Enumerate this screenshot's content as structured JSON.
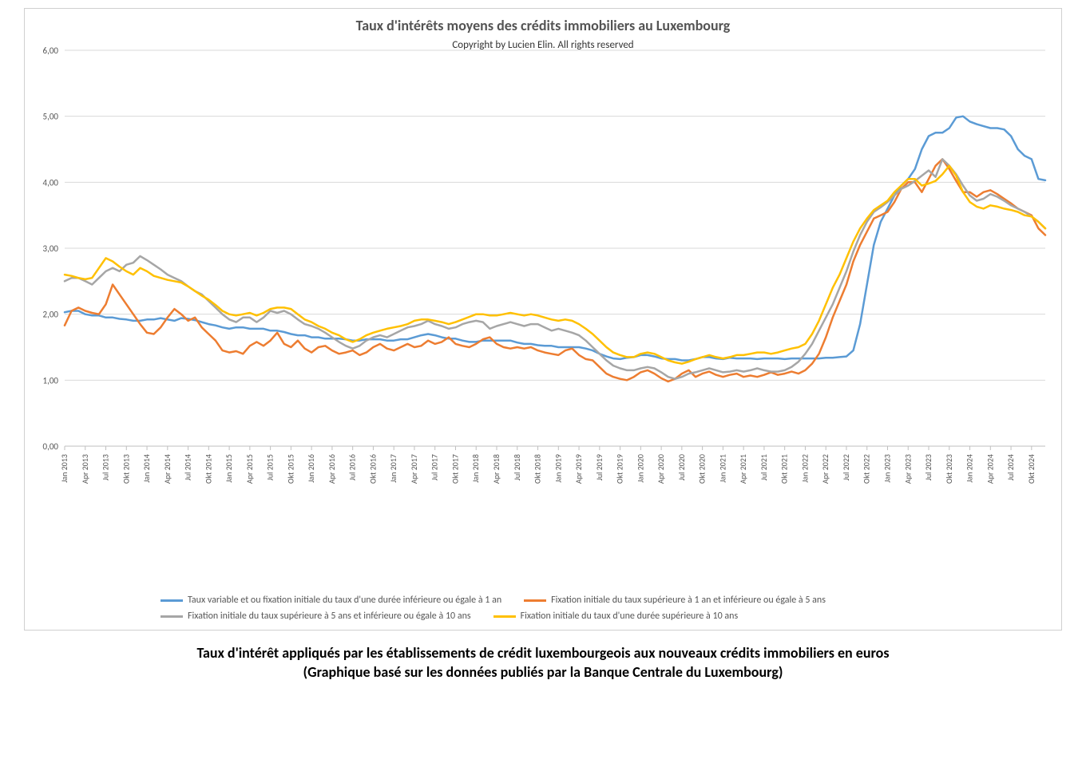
{
  "chart": {
    "type": "line",
    "title": "Taux d'intérêts moyens des crédits immobiliers au Luxembourg",
    "subtitle": "Copyright by Lucien Elin. All rights reserved",
    "title_fontsize": 18,
    "subtitle_fontsize": 13,
    "background_color": "#ffffff",
    "border_color": "#d0d0d0",
    "grid_color": "#d9d9d9",
    "axis_line_color": "#bfbfbf",
    "ylim": [
      0.0,
      6.0
    ],
    "ytick_step": 1.0,
    "ytick_labels": [
      "0,00",
      "1,00",
      "2,00",
      "3,00",
      "4,00",
      "5,00",
      "6,00"
    ],
    "yaxis_fontsize": 11,
    "xaxis_fontsize": 10,
    "line_width": 2.5,
    "x_categories": [
      "Jan 2013",
      "Feb 2013",
      "Mar 2013",
      "Apr 2013",
      "Mai 2013",
      "Jun 2013",
      "Jul 2013",
      "Aug 2013",
      "Sep 2013",
      "Okt 2013",
      "Nov 2013",
      "Dez 2013",
      "Jan 2014",
      "Feb 2014",
      "Mar 2014",
      "Apr 2014",
      "Mai 2014",
      "Jun 2014",
      "Jul 2014",
      "Aug 2014",
      "Sep 2014",
      "Okt 2014",
      "Nov 2014",
      "Dez 2014",
      "Jan 2015",
      "Feb 2015",
      "Mar 2015",
      "Apr 2015",
      "Mai 2015",
      "Jun 2015",
      "Jul 2015",
      "Aug 2015",
      "Sep 2015",
      "Okt 2015",
      "Nov 2015",
      "Dez 2015",
      "Jan 2016",
      "Feb 2016",
      "Mar 2016",
      "Apr 2016",
      "Mai 2016",
      "Jun 2016",
      "Jul 2016",
      "Aug 2016",
      "Sep 2016",
      "Okt 2016",
      "Nov 2016",
      "Dez 2016",
      "Jan 2017",
      "Feb 2017",
      "Mar 2017",
      "Apr 2017",
      "Mai 2017",
      "Jun 2017",
      "Jul 2017",
      "Aug 2017",
      "Sep 2017",
      "Okt 2017",
      "Nov 2017",
      "Dez 2017",
      "Jan 2018",
      "Feb 2018",
      "Mar 2018",
      "Apr 2018",
      "Mai 2018",
      "Jun 2018",
      "Jul 2018",
      "Aug 2018",
      "Sep 2018",
      "Okt 2018",
      "Nov 2018",
      "Dez 2018",
      "Jan 2019",
      "Feb 2019",
      "Mar 2019",
      "Apr 2019",
      "Mai 2019",
      "Jun 2019",
      "Jul 2019",
      "Aug 2019",
      "Sep 2019",
      "Okt 2019",
      "Nov 2019",
      "Dez 2019",
      "Jan 2020",
      "Feb 2020",
      "Mar 2020",
      "Apr 2020",
      "Mai 2020",
      "Jun 2020",
      "Jul 2020",
      "Aug 2020",
      "Sep 2020",
      "Okt 2020",
      "Nov 2020",
      "Dez 2020",
      "Jan 2021",
      "Feb 2021",
      "Mar 2021",
      "Apr 2021",
      "Mai 2021",
      "Jun 2021",
      "Jul 2021",
      "Aug 2021",
      "Sep 2021",
      "Okt 2021",
      "Nov 2021",
      "Dez 2021",
      "Jan 2022",
      "Feb 2022",
      "Mar 2022",
      "Apr 2022",
      "Mai 2022",
      "Jun 2022",
      "Jul 2022",
      "Aug 2022",
      "Sep 2022",
      "Okt 2022",
      "Nov 2022",
      "Dez 2022",
      "Jan 2023",
      "Feb 2023",
      "Mar 2023",
      "Apr 2023",
      "Mai 2023",
      "Jun 2023",
      "Jul 2023",
      "Aug 2023",
      "Sep 2023",
      "Okt 2023",
      "Nov 2023",
      "Dez 2023",
      "Jan 2024",
      "Feb 2024",
      "Mar 2024",
      "Apr 2024",
      "Mai 2024",
      "Jun 2024",
      "Jul 2024",
      "Aug 2024",
      "Sep 2024",
      "Okt 2024",
      "Nov 2024",
      "Dez 2024"
    ],
    "x_tick_step": 3,
    "x_tick_rotation": -90,
    "series": [
      {
        "id": "variable_1y",
        "label": "Taux variable et ou fixation initiale du taux d'une durée inférieure ou égale à 1 an",
        "color": "#5b9bd5",
        "values": [
          2.03,
          2.05,
          2.05,
          2.0,
          1.98,
          1.98,
          1.95,
          1.95,
          1.93,
          1.92,
          1.9,
          1.9,
          1.92,
          1.92,
          1.94,
          1.92,
          1.9,
          1.94,
          1.93,
          1.91,
          1.88,
          1.85,
          1.83,
          1.8,
          1.78,
          1.8,
          1.8,
          1.78,
          1.78,
          1.78,
          1.75,
          1.75,
          1.73,
          1.7,
          1.68,
          1.68,
          1.65,
          1.65,
          1.63,
          1.63,
          1.63,
          1.62,
          1.6,
          1.6,
          1.62,
          1.62,
          1.62,
          1.6,
          1.6,
          1.62,
          1.62,
          1.65,
          1.68,
          1.7,
          1.68,
          1.65,
          1.63,
          1.63,
          1.6,
          1.58,
          1.58,
          1.6,
          1.6,
          1.6,
          1.6,
          1.6,
          1.57,
          1.55,
          1.55,
          1.53,
          1.52,
          1.52,
          1.5,
          1.5,
          1.5,
          1.5,
          1.48,
          1.45,
          1.4,
          1.36,
          1.33,
          1.32,
          1.34,
          1.35,
          1.38,
          1.38,
          1.36,
          1.33,
          1.32,
          1.32,
          1.3,
          1.3,
          1.32,
          1.35,
          1.35,
          1.33,
          1.32,
          1.34,
          1.33,
          1.33,
          1.33,
          1.32,
          1.33,
          1.33,
          1.33,
          1.32,
          1.33,
          1.33,
          1.33,
          1.33,
          1.33,
          1.34,
          1.34,
          1.35,
          1.36,
          1.45,
          1.85,
          2.45,
          3.05,
          3.4,
          3.6,
          3.8,
          3.95,
          4.05,
          4.2,
          4.5,
          4.7,
          4.75,
          4.75,
          4.82,
          4.98,
          5.0,
          4.92,
          4.88,
          4.85,
          4.82,
          4.82,
          4.8,
          4.7,
          4.5,
          4.4,
          4.35,
          4.05,
          4.03
        ]
      },
      {
        "id": "fix_1_5",
        "label": "Fixation initiale du taux supérieure à 1 an et inférieure ou égale à 5 ans",
        "color": "#ed7d31",
        "values": [
          1.83,
          2.05,
          2.1,
          2.05,
          2.02,
          2.0,
          2.15,
          2.45,
          2.3,
          2.15,
          2.0,
          1.85,
          1.72,
          1.7,
          1.8,
          1.95,
          2.08,
          2.0,
          1.9,
          1.95,
          1.8,
          1.7,
          1.6,
          1.45,
          1.42,
          1.44,
          1.4,
          1.52,
          1.58,
          1.52,
          1.6,
          1.72,
          1.55,
          1.5,
          1.6,
          1.48,
          1.42,
          1.5,
          1.52,
          1.45,
          1.4,
          1.42,
          1.45,
          1.38,
          1.42,
          1.5,
          1.55,
          1.48,
          1.45,
          1.5,
          1.55,
          1.5,
          1.52,
          1.6,
          1.55,
          1.58,
          1.65,
          1.55,
          1.52,
          1.5,
          1.55,
          1.62,
          1.65,
          1.55,
          1.5,
          1.48,
          1.5,
          1.48,
          1.5,
          1.45,
          1.42,
          1.4,
          1.38,
          1.45,
          1.48,
          1.38,
          1.32,
          1.3,
          1.2,
          1.1,
          1.05,
          1.02,
          1.0,
          1.05,
          1.12,
          1.15,
          1.1,
          1.03,
          0.98,
          1.02,
          1.1,
          1.15,
          1.05,
          1.1,
          1.13,
          1.08,
          1.05,
          1.08,
          1.1,
          1.05,
          1.07,
          1.05,
          1.08,
          1.12,
          1.08,
          1.1,
          1.13,
          1.1,
          1.15,
          1.25,
          1.4,
          1.65,
          1.95,
          2.2,
          2.45,
          2.8,
          3.05,
          3.25,
          3.45,
          3.5,
          3.55,
          3.7,
          3.9,
          4.0,
          4.0,
          3.85,
          4.05,
          4.25,
          4.35,
          4.2,
          4.02,
          3.85,
          3.85,
          3.78,
          3.85,
          3.88,
          3.82,
          3.75,
          3.68,
          3.6,
          3.55,
          3.5,
          3.3,
          3.2
        ]
      },
      {
        "id": "fix_5_10",
        "label": "Fixation initiale du taux supérieure à 5 ans et inférieure ou égale à 10 ans",
        "color": "#a6a6a6",
        "values": [
          2.5,
          2.55,
          2.55,
          2.5,
          2.45,
          2.55,
          2.65,
          2.7,
          2.65,
          2.75,
          2.78,
          2.88,
          2.82,
          2.75,
          2.68,
          2.6,
          2.55,
          2.5,
          2.42,
          2.35,
          2.3,
          2.2,
          2.1,
          2.0,
          1.92,
          1.88,
          1.95,
          1.95,
          1.88,
          1.95,
          2.05,
          2.02,
          2.05,
          2.0,
          1.92,
          1.85,
          1.82,
          1.78,
          1.72,
          1.65,
          1.58,
          1.52,
          1.48,
          1.52,
          1.6,
          1.65,
          1.68,
          1.65,
          1.7,
          1.75,
          1.8,
          1.82,
          1.85,
          1.9,
          1.85,
          1.82,
          1.78,
          1.8,
          1.85,
          1.88,
          1.9,
          1.88,
          1.78,
          1.82,
          1.85,
          1.88,
          1.85,
          1.82,
          1.85,
          1.85,
          1.8,
          1.75,
          1.78,
          1.75,
          1.72,
          1.68,
          1.6,
          1.5,
          1.4,
          1.3,
          1.22,
          1.18,
          1.15,
          1.15,
          1.18,
          1.2,
          1.18,
          1.12,
          1.05,
          1.02,
          1.05,
          1.1,
          1.12,
          1.15,
          1.18,
          1.15,
          1.12,
          1.13,
          1.15,
          1.13,
          1.15,
          1.18,
          1.15,
          1.13,
          1.13,
          1.15,
          1.2,
          1.28,
          1.4,
          1.55,
          1.75,
          1.95,
          2.15,
          2.4,
          2.65,
          2.95,
          3.2,
          3.4,
          3.55,
          3.62,
          3.7,
          3.8,
          3.9,
          3.95,
          4.02,
          4.1,
          4.18,
          4.08,
          4.35,
          4.25,
          4.12,
          3.95,
          3.8,
          3.72,
          3.75,
          3.82,
          3.78,
          3.72,
          3.65,
          3.6,
          3.55,
          3.48,
          3.4,
          3.3
        ]
      },
      {
        "id": "fix_10",
        "label": "Fixation initiale du taux d'une durée supérieure à 10 ans",
        "color": "#ffc000",
        "values": [
          2.6,
          2.58,
          2.55,
          2.53,
          2.55,
          2.7,
          2.85,
          2.8,
          2.72,
          2.65,
          2.6,
          2.7,
          2.65,
          2.58,
          2.55,
          2.52,
          2.5,
          2.48,
          2.42,
          2.35,
          2.28,
          2.22,
          2.14,
          2.05,
          2.0,
          1.98,
          2.0,
          2.02,
          1.98,
          2.02,
          2.08,
          2.1,
          2.1,
          2.08,
          2.0,
          1.92,
          1.88,
          1.82,
          1.78,
          1.72,
          1.68,
          1.62,
          1.58,
          1.62,
          1.68,
          1.72,
          1.75,
          1.78,
          1.8,
          1.82,
          1.85,
          1.9,
          1.92,
          1.92,
          1.9,
          1.88,
          1.85,
          1.88,
          1.92,
          1.96,
          2.0,
          2.0,
          1.98,
          1.98,
          2.0,
          2.02,
          2.0,
          1.98,
          2.0,
          1.98,
          1.95,
          1.92,
          1.9,
          1.92,
          1.9,
          1.85,
          1.78,
          1.7,
          1.6,
          1.5,
          1.42,
          1.38,
          1.35,
          1.35,
          1.4,
          1.42,
          1.4,
          1.35,
          1.3,
          1.27,
          1.25,
          1.28,
          1.32,
          1.35,
          1.38,
          1.35,
          1.33,
          1.35,
          1.38,
          1.38,
          1.4,
          1.42,
          1.42,
          1.4,
          1.42,
          1.45,
          1.48,
          1.5,
          1.55,
          1.7,
          1.9,
          2.15,
          2.4,
          2.6,
          2.85,
          3.1,
          3.3,
          3.45,
          3.58,
          3.65,
          3.72,
          3.85,
          3.95,
          4.05,
          4.05,
          3.95,
          3.98,
          4.02,
          4.12,
          4.25,
          4.1,
          3.85,
          3.7,
          3.63,
          3.6,
          3.65,
          3.63,
          3.6,
          3.58,
          3.55,
          3.5,
          3.48,
          3.4,
          3.3
        ]
      }
    ],
    "legend_position": "bottom",
    "legend_fontsize": 12,
    "legend_text_color": "#595959"
  },
  "caption": {
    "line1": "Taux d'intérêt appliqués par les établissements de crédit luxembourgeois aux nouveaux crédits immobiliers en euros",
    "line2": "(Graphique basé sur les données publiés par la Banque Centrale du Luxembourg)",
    "fontsize": 18,
    "font_weight": "bold",
    "color": "#000000"
  }
}
